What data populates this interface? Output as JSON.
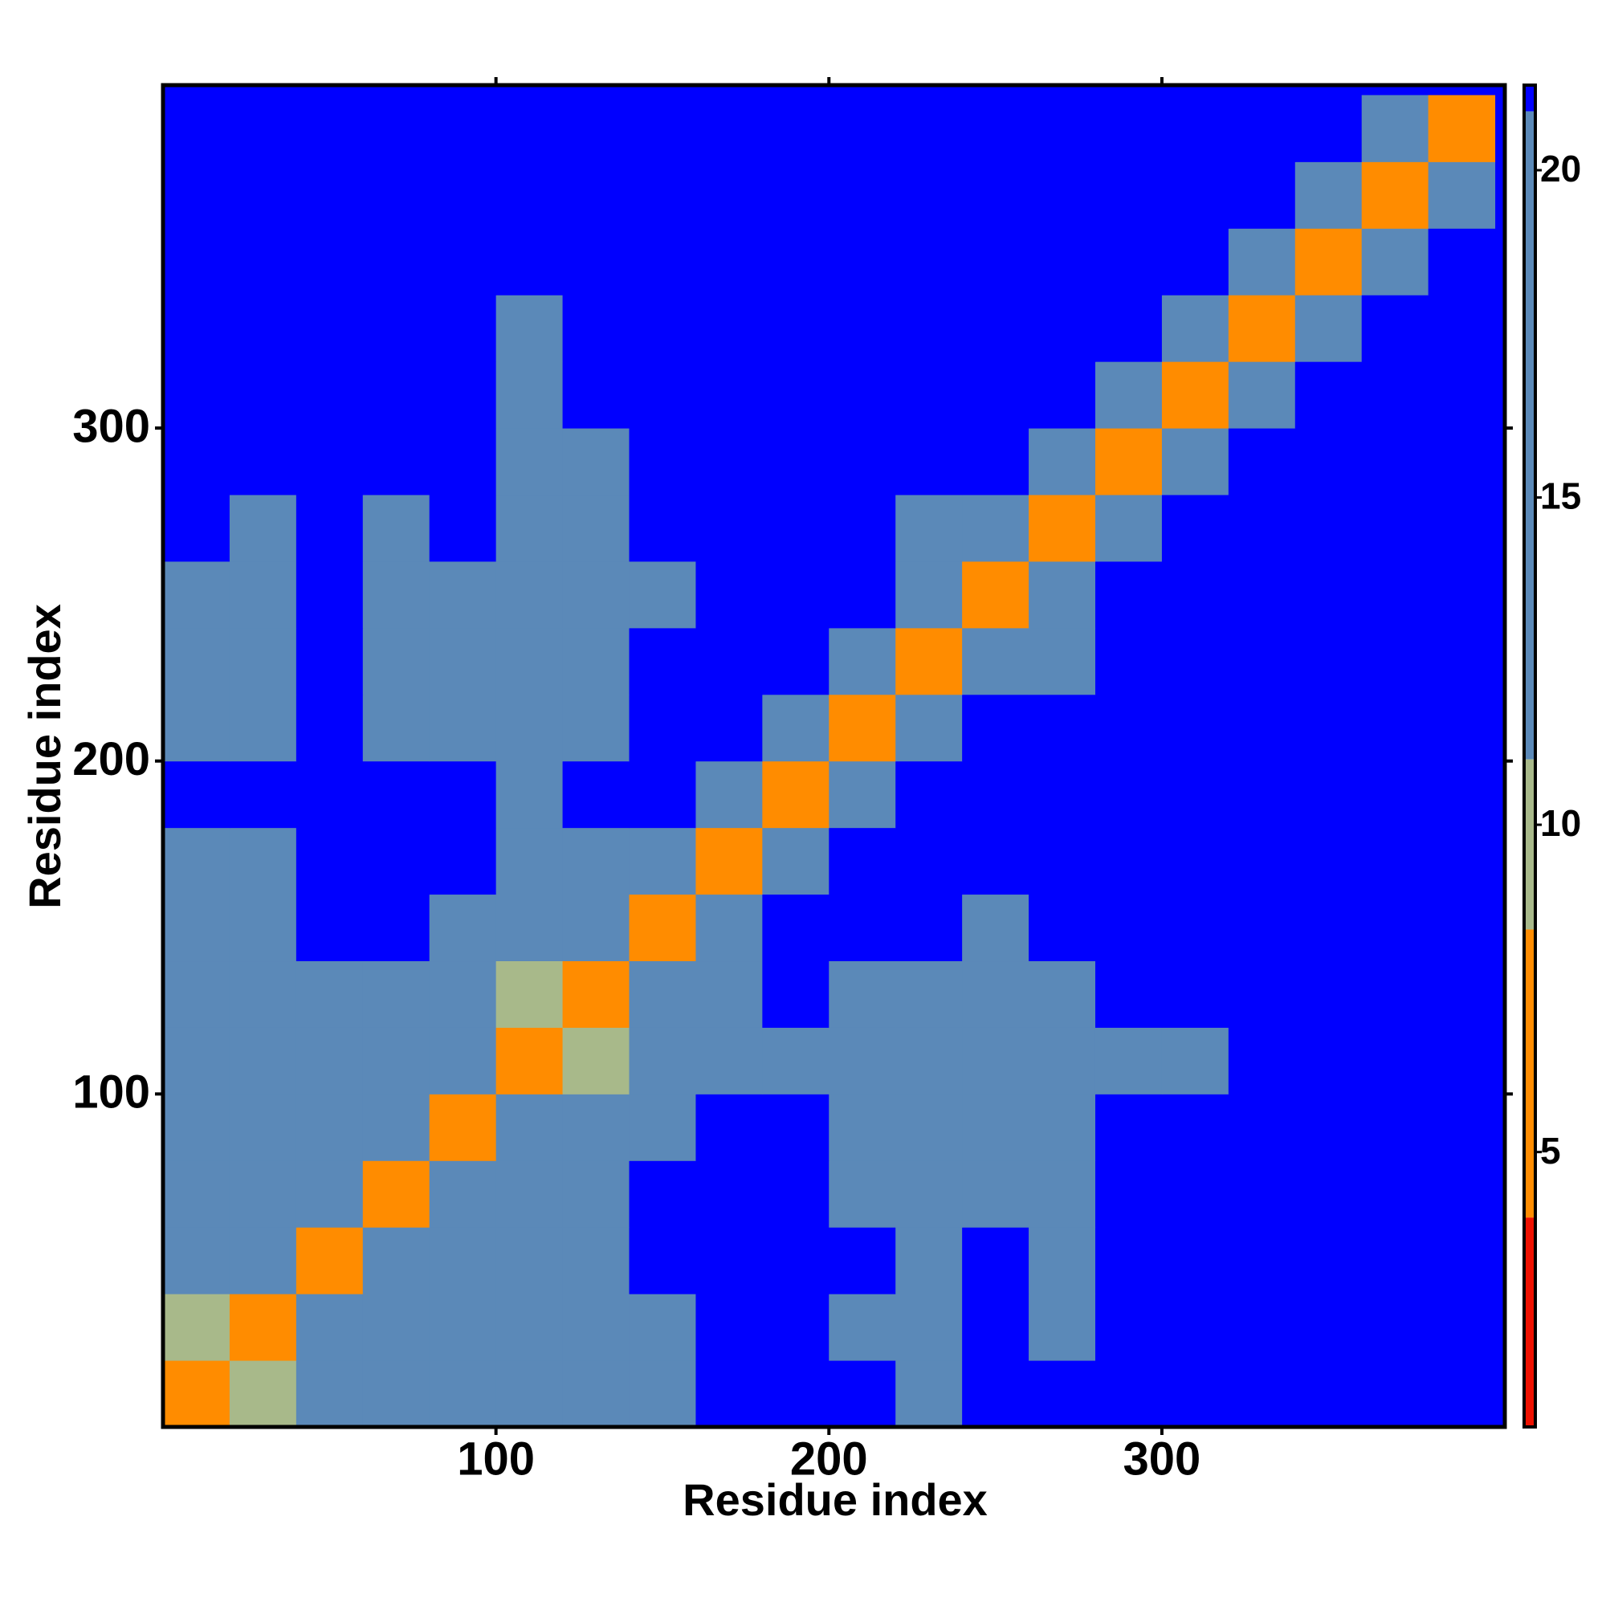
{
  "chart_data": {
    "type": "heatmap",
    "xlabel": "Residue index",
    "ylabel": "Residue index",
    "xlim": [
      0,
      403
    ],
    "ylim": [
      0,
      403
    ],
    "xticks": [
      100,
      200,
      300
    ],
    "yticks": [
      100,
      200,
      300
    ],
    "bins": [
      0,
      20,
      40,
      60,
      80,
      100,
      120,
      140,
      160,
      180,
      200,
      220,
      240,
      260,
      280,
      300,
      320,
      340,
      360,
      380,
      400
    ],
    "z": [
      [
        6,
        11,
        14,
        12,
        15,
        18,
        17,
        18,
        21,
        21,
        21,
        19,
        21,
        21,
        21,
        21,
        21,
        21,
        21,
        21
      ],
      [
        11,
        6,
        12,
        12,
        14,
        18,
        18,
        18,
        21,
        21,
        18,
        17,
        21,
        18,
        21,
        21,
        21,
        21,
        21,
        21
      ],
      [
        14,
        13,
        6,
        13,
        16,
        17,
        18,
        21,
        21,
        21,
        21,
        17,
        21,
        18,
        21,
        21,
        21,
        21,
        21,
        21
      ],
      [
        12,
        12,
        12,
        6,
        12,
        16,
        17,
        21,
        21,
        21,
        19,
        17,
        19,
        18,
        21,
        21,
        21,
        21,
        21,
        21
      ],
      [
        12,
        13,
        15,
        12,
        7,
        12,
        15,
        18,
        21,
        21,
        18,
        18,
        18,
        18,
        21,
        21,
        21,
        21,
        21,
        21
      ],
      [
        16,
        17,
        17,
        16,
        12,
        6,
        11,
        16,
        18,
        18,
        17,
        17,
        17,
        17,
        18,
        18,
        21,
        21,
        21,
        21
      ],
      [
        17,
        18,
        18,
        17,
        13,
        11,
        6,
        12,
        18,
        21,
        18,
        18,
        17,
        17,
        21,
        21,
        21,
        21,
        21,
        21
      ],
      [
        17,
        18,
        21,
        21,
        18,
        16,
        13,
        6,
        14,
        21,
        21,
        21,
        18,
        21,
        21,
        21,
        21,
        21,
        21,
        21
      ],
      [
        19,
        19,
        21,
        21,
        21,
        17,
        18,
        14,
        6,
        14,
        21,
        21,
        21,
        21,
        21,
        21,
        21,
        21,
        21,
        21
      ],
      [
        21,
        21,
        21,
        21,
        21,
        17,
        21,
        21,
        14,
        6,
        14,
        21,
        21,
        21,
        21,
        21,
        21,
        21,
        21,
        21
      ],
      [
        19,
        17,
        21,
        19,
        19,
        16,
        18,
        21,
        21,
        14,
        6,
        13,
        21,
        21,
        21,
        21,
        21,
        21,
        21,
        21
      ],
      [
        17,
        17,
        21,
        17,
        18,
        16,
        17,
        21,
        21,
        21,
        13,
        6,
        12,
        16,
        21,
        21,
        21,
        21,
        21,
        21
      ],
      [
        19,
        17,
        21,
        17,
        18,
        16,
        17,
        17,
        21,
        21,
        21,
        12,
        6,
        12,
        21,
        21,
        21,
        21,
        21,
        21
      ],
      [
        21,
        19,
        21,
        19,
        21,
        17,
        18,
        21,
        21,
        21,
        21,
        15,
        12,
        6,
        13,
        21,
        21,
        21,
        21,
        21
      ],
      [
        21,
        21,
        21,
        21,
        21,
        18,
        19,
        21,
        21,
        21,
        21,
        21,
        21,
        13,
        6,
        14,
        21,
        21,
        21,
        21
      ],
      [
        21,
        21,
        21,
        21,
        21,
        17,
        21,
        21,
        21,
        21,
        21,
        21,
        21,
        21,
        14,
        6,
        14,
        21,
        21,
        21
      ],
      [
        21,
        21,
        21,
        21,
        21,
        19,
        21,
        21,
        21,
        21,
        21,
        21,
        21,
        21,
        21,
        14,
        6,
        14,
        21,
        21
      ],
      [
        21,
        21,
        21,
        21,
        21,
        21,
        21,
        21,
        21,
        21,
        21,
        21,
        21,
        21,
        21,
        21,
        14,
        6,
        14,
        21
      ],
      [
        21,
        21,
        21,
        21,
        21,
        21,
        21,
        21,
        21,
        21,
        21,
        21,
        21,
        21,
        21,
        21,
        21,
        14,
        6,
        14
      ],
      [
        21,
        21,
        21,
        21,
        21,
        21,
        21,
        21,
        21,
        21,
        21,
        21,
        21,
        21,
        21,
        21,
        21,
        21,
        14,
        6
      ]
    ],
    "clim": [
      0.8,
      21.3
    ],
    "cticks": [
      5,
      10,
      15,
      20
    ],
    "colorscale": [
      {
        "max": 4,
        "color": "#ee1100"
      },
      {
        "max": 8.4,
        "color": "#ff8c00"
      },
      {
        "max": 11,
        "color": "#a8b98a"
      },
      {
        "max": 20.9,
        "color": "#5b89b8"
      },
      {
        "max": 21.3,
        "color": "#0000ff"
      }
    ]
  }
}
